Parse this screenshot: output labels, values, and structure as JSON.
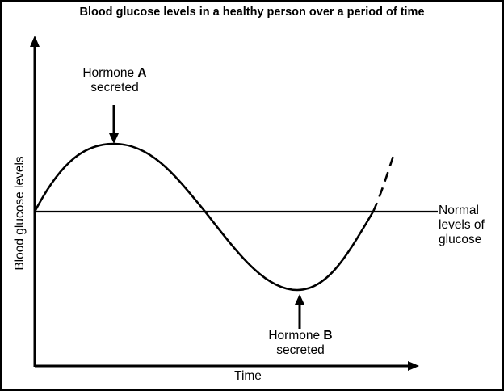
{
  "title": "Blood glucose levels in a healthy person over a period of time",
  "axes": {
    "xlabel": "Time",
    "ylabel": "Blood glucose levels"
  },
  "reference_line": {
    "label_line1": "Normal",
    "label_line2": "levels of",
    "label_line3": "glucose"
  },
  "annotations": {
    "hormone_a": {
      "line1_prefix": "Hormone ",
      "line1_letter": "A",
      "line2": "secreted"
    },
    "hormone_b": {
      "line1_prefix": "Hormone ",
      "line1_letter": "B",
      "line2": "secreted"
    }
  },
  "curve": {
    "description_shape": "sine-wave",
    "continuation": "dashed"
  },
  "colors": {
    "ink": "#000000",
    "background": "#ffffff"
  }
}
